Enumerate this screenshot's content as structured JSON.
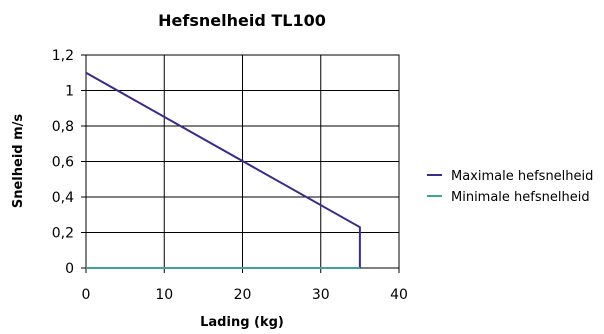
{
  "chart_data": {
    "type": "line",
    "title": "Hefsnelheid TL100",
    "xlabel": "Lading (kg)",
    "ylabel": "Snelheid m/s",
    "xlim": [
      0,
      40
    ],
    "ylim": [
      0,
      1.2
    ],
    "x_ticks": [
      "0",
      "10",
      "20",
      "30",
      "40"
    ],
    "y_ticks": [
      "0",
      "0,2",
      "0,4",
      "0,6",
      "0,8",
      "1",
      "1,2"
    ],
    "grid": true,
    "legend_position": "right",
    "series": [
      {
        "name": "Maximale hefsnelheid",
        "color": "#3a2a8c",
        "x": [
          0,
          35,
          35
        ],
        "y": [
          1.1,
          0.23,
          0
        ]
      },
      {
        "name": "Minimale hefsnelheid",
        "color": "#3fa39a",
        "x": [
          0,
          35
        ],
        "y": [
          0,
          0
        ]
      }
    ]
  }
}
